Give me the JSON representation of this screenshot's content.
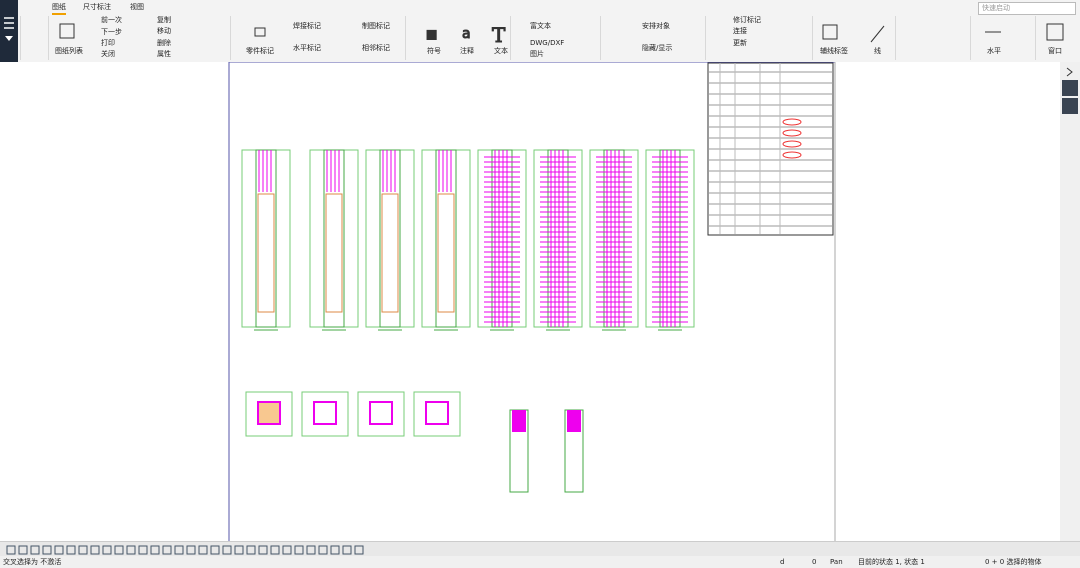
{
  "tabs": [
    "图纸",
    "尺寸标注",
    "视图"
  ],
  "search_placeholder": "快速启动",
  "ribbon": [
    "图纸列表",
    "前一次",
    "下一步",
    "打印",
    "关闭",
    "复制",
    "移动",
    "删除",
    "属性",
    "零件标记",
    "焊接标记",
    "水平标记",
    "制图标记",
    "相邻标记",
    "符号",
    "注释",
    "文本",
    "富文本",
    "DWG/DXF",
    "图片",
    "安排对象",
    "隐藏/显示",
    "修订标记",
    "连接",
    "更新",
    "辅线标签",
    "线",
    "水平",
    "窗口"
  ],
  "status": [
    "交叉选择为 不激活",
    "d",
    "0",
    "Pan",
    "目前的状态 1, 状态 1",
    "0 + 0 选择的物体"
  ]
}
